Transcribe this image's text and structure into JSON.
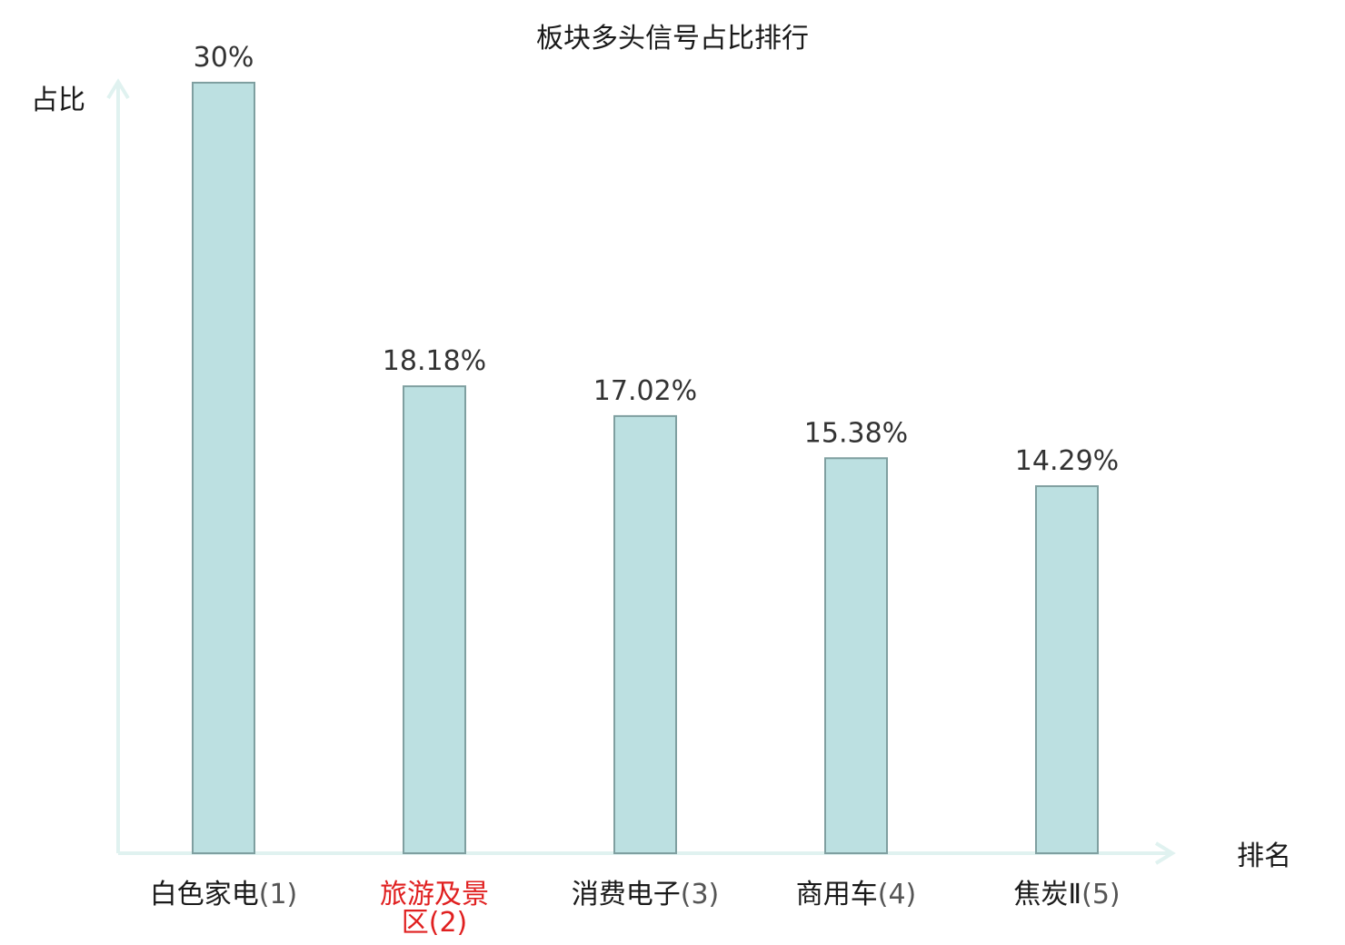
{
  "chart_data": {
    "type": "bar",
    "title": "板块多头信号占比排行",
    "xlabel": "排名",
    "ylabel": "占比",
    "ylim": [
      0,
      30
    ],
    "grid": false,
    "legend": "none",
    "categories": [
      {
        "name": "白色家电",
        "rank": "(1)",
        "highlight": false
      },
      {
        "name": "旅游及景区",
        "rank": "(2)",
        "highlight": true
      },
      {
        "name": "消费电子",
        "rank": "(3)",
        "highlight": false
      },
      {
        "name": "商用车",
        "rank": "(4)",
        "highlight": false
      },
      {
        "name": "焦炭Ⅱ",
        "rank": "(5)",
        "highlight": false
      }
    ],
    "values": [
      30,
      18.18,
      17.02,
      15.38,
      14.29
    ],
    "value_labels": [
      "30%",
      "18.18%",
      "17.02%",
      "15.38%",
      "14.29%"
    ]
  },
  "colors": {
    "bar_fill": "#bce0e1",
    "bar_stroke": "#7f9fa0",
    "axis": "#e0f2f0",
    "highlight_text": "#e02020",
    "text": "#1a1a1a"
  }
}
